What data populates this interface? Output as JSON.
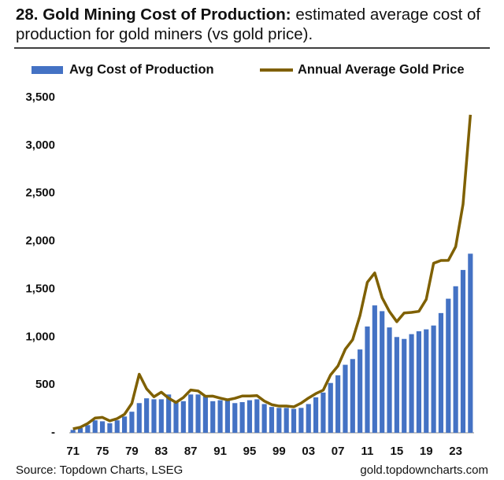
{
  "chart_data": {
    "type": "bar-line",
    "title": "28. Gold Mining Cost of Production:",
    "subtitle": "estimated average cost of production for gold miners (vs gold price).",
    "source": "Source: Topdown Charts, LSEG",
    "website": "gold.topdowncharts.com",
    "legend": "top",
    "grid": false,
    "categories": [
      "71",
      null,
      null,
      null,
      "75",
      null,
      null,
      null,
      "79",
      null,
      null,
      null,
      "83",
      null,
      null,
      null,
      "87",
      null,
      null,
      null,
      "91",
      null,
      null,
      null,
      "95",
      null,
      null,
      null,
      "99",
      null,
      null,
      null,
      "03",
      null,
      null,
      null,
      "07",
      null,
      null,
      null,
      "11",
      null,
      null,
      null,
      "15",
      null,
      null,
      null,
      "19",
      null,
      null,
      null,
      "23",
      null,
      null
    ],
    "series": [
      {
        "name": "Avg Cost of Production",
        "type": "bar",
        "color": "#4472c4",
        "values": [
          30,
          50,
          80,
          130,
          120,
          100,
          130,
          170,
          220,
          310,
          360,
          350,
          350,
          400,
          330,
          330,
          400,
          400,
          380,
          330,
          340,
          340,
          310,
          320,
          340,
          350,
          300,
          270,
          260,
          260,
          250,
          260,
          300,
          370,
          420,
          520,
          600,
          710,
          770,
          870,
          1110,
          1330,
          1270,
          1100,
          1000,
          980,
          1030,
          1060,
          1080,
          1120,
          1250,
          1400,
          1530,
          1700,
          1870
        ]
      },
      {
        "name": "Annual Average Gold Price",
        "type": "line",
        "color": "#7f6000",
        "values": [
          41,
          58,
          97,
          154,
          161,
          125,
          148,
          193,
          307,
          612,
          460,
          376,
          424,
          361,
          317,
          368,
          447,
          437,
          381,
          383,
          362,
          344,
          360,
          384,
          384,
          388,
          331,
          294,
          279,
          279,
          271,
          310,
          363,
          409,
          445,
          604,
          697,
          872,
          972,
          1225,
          1572,
          1669,
          1411,
          1266,
          1160,
          1251,
          1257,
          1268,
          1393,
          1770,
          1799,
          1800,
          1943,
          2386,
          3320
        ]
      }
    ],
    "ylim": [
      0,
      3500
    ],
    "yticks": [
      {
        "value": 0,
        "label": "-"
      },
      500,
      {
        "value": 1000,
        "label": "1,000"
      },
      {
        "value": 1500,
        "label": "1,500"
      },
      {
        "value": 2000,
        "label": "2,000"
      },
      {
        "value": 2500,
        "label": "2,500"
      },
      {
        "value": 3000,
        "label": "3,000"
      },
      {
        "value": 3500,
        "label": "3,500"
      }
    ]
  }
}
